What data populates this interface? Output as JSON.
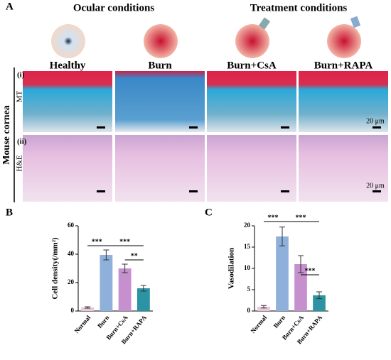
{
  "panel_a": {
    "label": "A",
    "groups": [
      "Ocular conditions",
      "Treatment conditions"
    ],
    "columns": [
      "Healthy",
      "Burn",
      "Burn+CsA",
      "Burn+RAPA"
    ],
    "side_label": "Mouse cornea",
    "rows": [
      {
        "index": "(i)",
        "stain": "MT"
      },
      {
        "index": "(ii)",
        "stain": "H&E"
      }
    ],
    "scale_bar": "20 μm"
  },
  "chart_data": [
    {
      "type": "bar",
      "panel": "B",
      "ylabel": "Cell density(/mm²)",
      "categories": [
        "Normal",
        "Burn",
        "Burn+CsA",
        "Burn+RAPA"
      ],
      "values": [
        2.5,
        39.5,
        30,
        16
      ],
      "errors": [
        0.5,
        3.5,
        3,
        2
      ],
      "colors": [
        "#e9c6d9",
        "#8fb0da",
        "#c690cf",
        "#2b93a3"
      ],
      "ylim": [
        0,
        60
      ],
      "yticks": [
        0,
        20,
        40,
        60
      ],
      "significance": [
        {
          "from": "Normal",
          "to": "Burn",
          "y": 46,
          "text": "***"
        },
        {
          "from": "Burn",
          "to": "Burn+RAPA",
          "y": 46,
          "text": "***"
        },
        {
          "from": "Burn+CsA",
          "to": "Burn+RAPA",
          "y": 36,
          "text": "**"
        }
      ]
    },
    {
      "type": "bar",
      "panel": "C",
      "ylabel": "Vasodilation",
      "categories": [
        "Normal",
        "Burn",
        "Burn+CsA",
        "Burn+RAPA"
      ],
      "values": [
        1,
        17.5,
        11,
        3.7
      ],
      "errors": [
        0.3,
        2.2,
        2,
        0.8
      ],
      "colors": [
        "#e9c6d9",
        "#8fb0da",
        "#c690cf",
        "#2b93a3"
      ],
      "ylim": [
        0,
        20
      ],
      "yticks": [
        0,
        5,
        10,
        15,
        20
      ],
      "significance": [
        {
          "from": "Normal",
          "to": "Burn",
          "y": 21,
          "text": "***"
        },
        {
          "from": "Burn",
          "to": "Burn+RAPA",
          "y": 21,
          "text": "***"
        },
        {
          "from": "Burn+CsA",
          "to": "Burn+RAPA",
          "y": 8.5,
          "text": "***"
        }
      ]
    }
  ]
}
